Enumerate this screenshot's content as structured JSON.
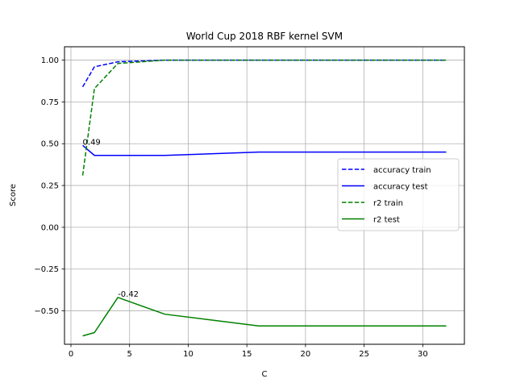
{
  "chart_data": {
    "type": "line",
    "title": "World Cup 2018 RBF kernel SVM",
    "xlabel": "C",
    "ylabel": "Score",
    "xlim": [
      -0.55,
      33.55
    ],
    "ylim": [
      -0.7,
      1.08
    ],
    "xticks": [
      0,
      5,
      10,
      15,
      20,
      25,
      30
    ],
    "yticks": [
      -0.5,
      -0.25,
      0.0,
      0.25,
      0.5,
      0.75,
      1.0
    ],
    "ytick_labels": [
      "−0.50",
      "−0.25",
      "0.00",
      "0.25",
      "0.50",
      "0.75",
      "1.00"
    ],
    "xtick_labels": [
      "0",
      "5",
      "10",
      "15",
      "20",
      "25",
      "30"
    ],
    "grid": true,
    "legend_position": "center-right",
    "x": [
      1,
      2,
      4,
      8,
      16,
      32
    ],
    "series": [
      {
        "name": "accuracy train",
        "values": [
          0.84,
          0.96,
          0.99,
          1.0,
          1.0,
          1.0
        ],
        "color": "#0000ff",
        "dash": true
      },
      {
        "name": "accuracy test",
        "values": [
          0.49,
          0.43,
          0.43,
          0.43,
          0.45,
          0.45
        ],
        "color": "#0000ff",
        "dash": false
      },
      {
        "name": "r2 train",
        "values": [
          0.31,
          0.83,
          0.98,
          1.0,
          1.0,
          1.0
        ],
        "color": "#008000",
        "dash": true
      },
      {
        "name": "r2 test",
        "values": [
          -0.65,
          -0.63,
          -0.42,
          -0.52,
          -0.59,
          -0.59
        ],
        "color": "#008000",
        "dash": false
      }
    ],
    "annotations": [
      {
        "text": "0.49",
        "x": 1,
        "y": 0.49
      },
      {
        "text": "-0.42",
        "x": 4,
        "y": -0.42
      }
    ]
  }
}
